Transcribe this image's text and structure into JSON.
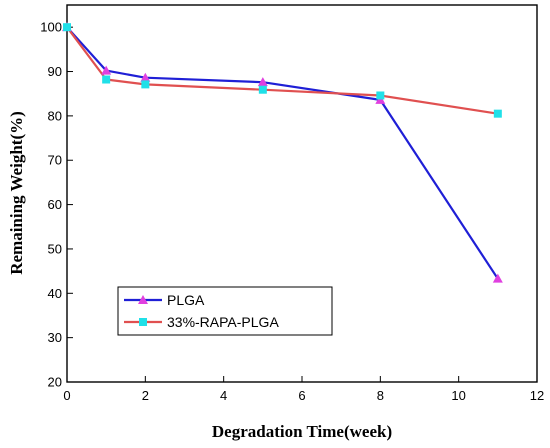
{
  "chart_data": {
    "type": "line",
    "title": "",
    "xlabel": "Degradation Time(week)",
    "ylabel": "Remaining Weight(%)",
    "xlim": [
      0,
      12
    ],
    "ylim": [
      20,
      105
    ],
    "xticks": [
      0,
      2,
      4,
      6,
      8,
      10,
      12
    ],
    "yticks": [
      20,
      30,
      40,
      50,
      60,
      70,
      80,
      90,
      100
    ],
    "grid": false,
    "legend_position": "bottom-left",
    "series": [
      {
        "name": "PLGA",
        "color": "#1f1fd6",
        "marker": "triangle",
        "marker_color": "#e040e0",
        "x": [
          0,
          1,
          2,
          5,
          8,
          11
        ],
        "y": [
          100,
          90.2,
          88.6,
          87.6,
          83.6,
          43.3
        ]
      },
      {
        "name": "33%-RAPA-PLGA",
        "color": "#e05050",
        "marker": "square",
        "marker_color": "#20e0e8",
        "x": [
          0,
          1,
          2,
          5,
          8,
          11
        ],
        "y": [
          100,
          88.2,
          87.1,
          85.9,
          84.6,
          80.5
        ]
      }
    ]
  }
}
